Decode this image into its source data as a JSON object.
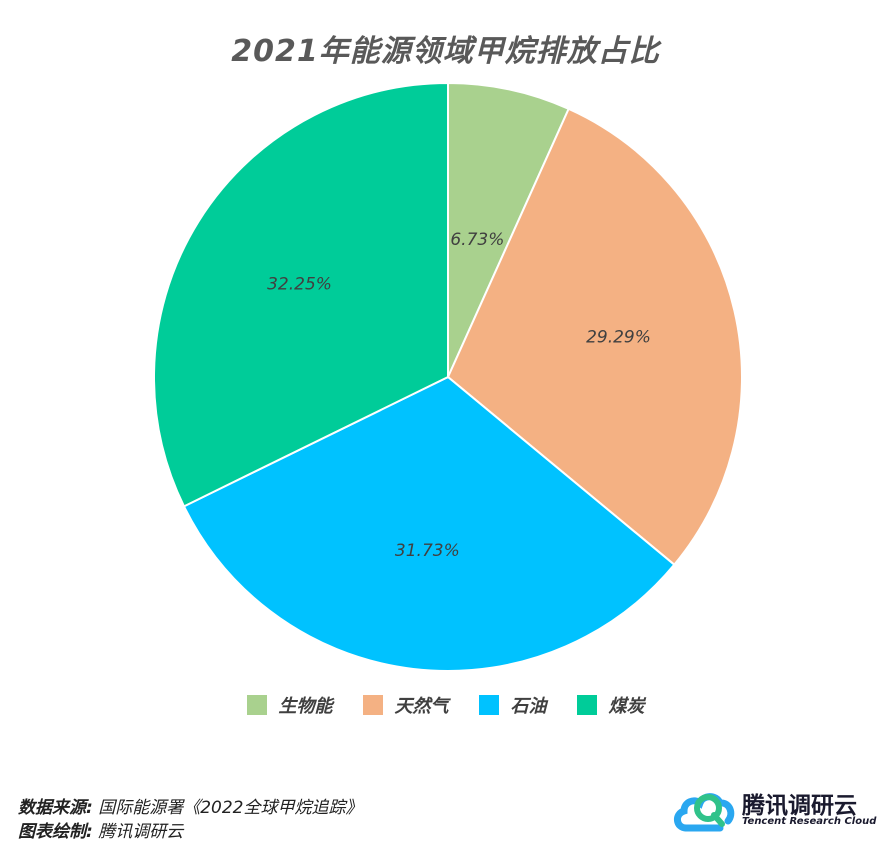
{
  "title": "2021年能源领域甲烷排放占比",
  "chart_data": {
    "type": "pie",
    "title": "2021年能源领域甲烷排放占比",
    "categories": [
      "生物能",
      "天然气",
      "石油",
      "煤炭"
    ],
    "values": [
      6.73,
      29.29,
      31.73,
      32.25
    ],
    "labels": [
      "6.73%",
      "29.29%",
      "31.73%",
      "32.25%"
    ],
    "colors": [
      "#a9d18e",
      "#f4b183",
      "#00c2ff",
      "#00cc99"
    ],
    "start": "12 o'clock",
    "direction": "clockwise",
    "legend_position": "bottom"
  },
  "footer": {
    "source_key": "数据来源:",
    "source_value": "国际能源署《2022全球甲烷追踪》",
    "author_key": "图表绘制:",
    "author_value": "腾讯调研云"
  },
  "logo": {
    "name": "腾讯调研云",
    "subtitle": "Tencent Research Cloud",
    "icon": "cloud-logo-icon",
    "colors": [
      "#2aa7f0",
      "#30c28a"
    ]
  }
}
